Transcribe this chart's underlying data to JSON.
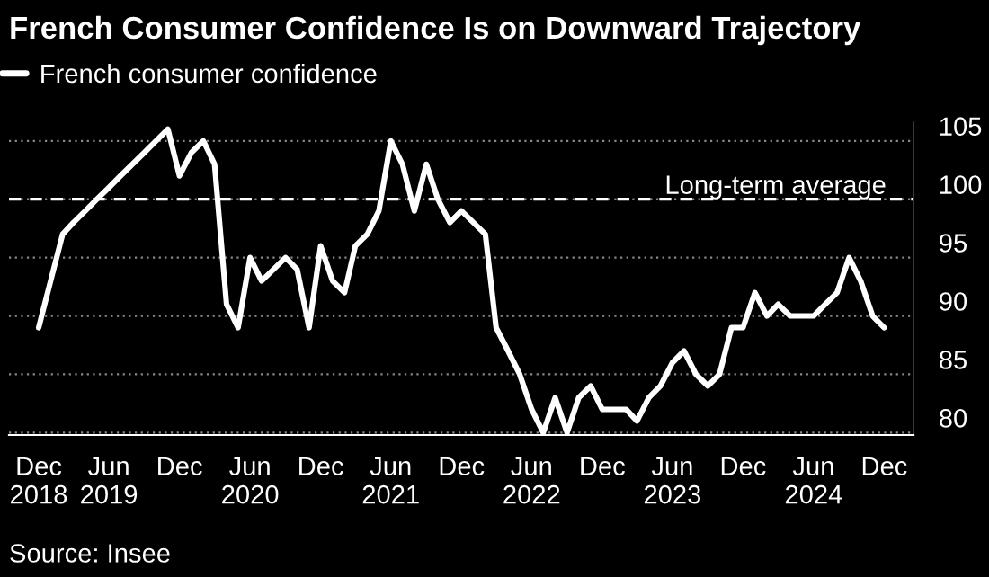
{
  "chart_data": {
    "type": "line",
    "title": "French Consumer Confidence Is on Downward Trajectory",
    "x": [
      "2018-12",
      "2019-01",
      "2019-02",
      "2019-03",
      "2019-04",
      "2019-05",
      "2019-06",
      "2019-07",
      "2019-08",
      "2019-09",
      "2019-10",
      "2019-11",
      "2019-12",
      "2020-01",
      "2020-02",
      "2020-03",
      "2020-04",
      "2020-05",
      "2020-06",
      "2020-07",
      "2020-08",
      "2020-09",
      "2020-10",
      "2020-11",
      "2020-12",
      "2021-01",
      "2021-02",
      "2021-03",
      "2021-04",
      "2021-05",
      "2021-06",
      "2021-07",
      "2021-08",
      "2021-09",
      "2021-10",
      "2021-11",
      "2021-12",
      "2022-01",
      "2022-02",
      "2022-03",
      "2022-04",
      "2022-05",
      "2022-06",
      "2022-07",
      "2022-08",
      "2022-09",
      "2022-10",
      "2022-11",
      "2022-12",
      "2023-01",
      "2023-02",
      "2023-03",
      "2023-04",
      "2023-05",
      "2023-06",
      "2023-07",
      "2023-08",
      "2023-09",
      "2023-10",
      "2023-11",
      "2023-12",
      "2024-01",
      "2024-02",
      "2024-03",
      "2024-04",
      "2024-05",
      "2024-06",
      "2024-07",
      "2024-08",
      "2024-09",
      "2024-10",
      "2024-11",
      "2024-12"
    ],
    "series": [
      {
        "name": "French consumer confidence",
        "color": "#ffffff",
        "values": [
          89,
          93,
          97,
          98,
          99,
          100,
          101,
          102,
          103,
          104,
          105,
          106,
          102,
          104,
          105,
          103,
          91,
          89,
          95,
          93,
          94,
          95,
          94,
          89,
          96,
          93,
          92,
          96,
          97,
          99,
          105,
          103,
          99,
          103,
          100,
          98,
          99,
          98,
          97,
          89,
          87,
          85,
          82,
          80,
          83,
          80,
          83,
          84,
          82,
          82,
          82,
          81,
          83,
          84,
          86,
          87,
          85,
          84,
          85,
          89,
          89,
          92,
          90,
          91,
          90,
          90,
          90,
          91,
          92,
          95,
          93,
          90,
          89
        ]
      }
    ],
    "xlim": [
      "2018-09-15",
      "2025-02-15"
    ],
    "xticks": [
      {
        "value": "2018-12",
        "label": "Dec\n2018"
      },
      {
        "value": "2019-06",
        "label": "Jun\n2019"
      },
      {
        "value": "2019-12",
        "label": "Dec"
      },
      {
        "value": "2020-06",
        "label": "Jun\n2020"
      },
      {
        "value": "2020-12",
        "label": "Dec"
      },
      {
        "value": "2021-06",
        "label": "Jun\n2021"
      },
      {
        "value": "2021-12",
        "label": "Dec"
      },
      {
        "value": "2022-06",
        "label": "Jun\n2022"
      },
      {
        "value": "2022-12",
        "label": "Dec"
      },
      {
        "value": "2023-06",
        "label": "Jun\n2023"
      },
      {
        "value": "2023-12",
        "label": "Dec"
      },
      {
        "value": "2024-06",
        "label": "Jun\n2024"
      },
      {
        "value": "2024-12",
        "label": "Dec"
      }
    ],
    "ylim": [
      79.8,
      106.6
    ],
    "yticks": [
      80,
      85,
      90,
      95,
      100,
      105
    ],
    "ref_lines": [
      {
        "axis": "y",
        "value": 100,
        "label": "Long-term average",
        "color": "#ffffff",
        "line_style": "dashed"
      }
    ],
    "annotations": [
      "Source: Insee"
    ],
    "grid": "y",
    "legend": "top left",
    "line_style": "solid",
    "marker": "none"
  }
}
